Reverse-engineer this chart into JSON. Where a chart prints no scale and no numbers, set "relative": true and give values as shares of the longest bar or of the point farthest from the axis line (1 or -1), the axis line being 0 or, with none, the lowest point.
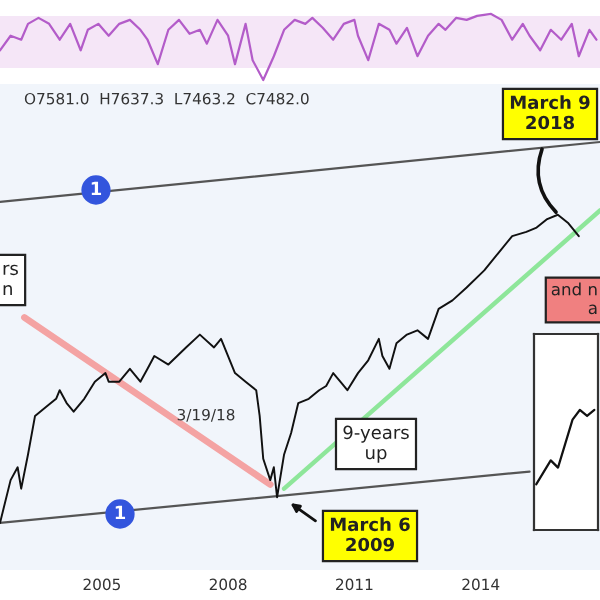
{
  "chart_data": [
    {
      "type": "line",
      "relative": true,
      "tick_labels": false,
      "grid": false,
      "legend": false,
      "bands": [
        {
          "axis": "y",
          "from": 0.18,
          "to": 0.97,
          "color": "#f5e6f7"
        }
      ],
      "series": [
        {
          "color": "#b35cc9",
          "x": [
            "2002-08",
            "2002-11",
            "2003-02",
            "2003-04",
            "2003-07",
            "2003-10",
            "2004-01",
            "2004-04",
            "2004-07",
            "2004-09",
            "2004-12",
            "2005-03",
            "2005-06",
            "2005-09",
            "2005-12",
            "2006-02",
            "2006-05",
            "2006-08",
            "2006-11",
            "2007-02",
            "2007-05",
            "2007-07",
            "2007-10",
            "2008-01",
            "2008-03",
            "2008-06",
            "2008-08",
            "2008-11",
            "2009-02",
            "2009-05",
            "2009-08",
            "2009-11",
            "2010-01",
            "2010-04",
            "2010-07",
            "2010-10",
            "2011-01",
            "2011-02",
            "2011-05",
            "2011-08",
            "2011-11",
            "2012-01",
            "2012-04",
            "2012-07",
            "2012-10",
            "2013-01",
            "2013-03",
            "2013-06",
            "2013-09",
            "2013-12",
            "2014-04",
            "2014-07",
            "2014-10",
            "2015-01",
            "2015-03",
            "2015-06",
            "2015-09",
            "2015-12",
            "2016-03",
            "2016-05",
            "2016-08",
            "2016-10"
          ],
          "values": [
            0.45,
            0.67,
            0.61,
            0.85,
            0.94,
            0.85,
            0.61,
            0.85,
            0.45,
            0.76,
            0.85,
            0.67,
            0.85,
            0.91,
            0.76,
            0.61,
            0.24,
            0.76,
            0.91,
            0.7,
            0.76,
            0.55,
            0.91,
            0.67,
            0.24,
            0.85,
            0.3,
            0,
            0.36,
            0.76,
            0.91,
            0.85,
            0.94,
            0.79,
            0.61,
            0.85,
            0.91,
            0.67,
            0.3,
            0.85,
            0.76,
            0.55,
            0.79,
            0.36,
            0.67,
            0.85,
            0.76,
            0.94,
            0.91,
            0.97,
            1,
            0.91,
            0.61,
            0.85,
            0.67,
            0.45,
            0.76,
            0.61,
            0.85,
            0.36,
            0.76,
            0.61
          ]
        }
      ],
      "xlim": [
        "2002-08",
        "2016-11"
      ]
    },
    {
      "type": "line",
      "relative": true,
      "tick_labels": "x",
      "grid": false,
      "legend": false,
      "xlim": [
        "2002-08",
        "2016-11"
      ],
      "xticks": [
        {
          "value": "2005-01",
          "label": "2005"
        },
        {
          "value": "2008-01",
          "label": "2008"
        },
        {
          "value": "2011-01",
          "label": "2011"
        },
        {
          "value": "2014-01",
          "label": "2014"
        }
      ],
      "series": [
        {
          "color": "#555555",
          "x": [
            "2002-08",
            "2016-11"
          ],
          "values": [
            0.86,
            1.0
          ]
        },
        {
          "color": "#555555",
          "x": [
            "2002-08",
            "2015-03"
          ],
          "values": [
            0.11,
            0.23
          ]
        },
        {
          "color": "#8ee69a",
          "x": [
            "2009-05",
            "2016-11"
          ],
          "values": [
            0.19,
            0.84
          ]
        },
        {
          "color": "#f4a3a3",
          "x": [
            "2003-03",
            "2009-01"
          ],
          "values": [
            0.59,
            0.2
          ]
        },
        {
          "color": "#111111",
          "x": [
            "2002-08",
            "2002-11",
            "2003-01",
            "2003-02",
            "2003-04",
            "2003-06",
            "2003-09",
            "2003-12",
            "2004-01",
            "2004-03",
            "2004-05",
            "2004-08",
            "2004-11",
            "2005-02",
            "2005-03",
            "2005-06",
            "2005-09",
            "2005-12",
            "2006-02",
            "2006-04",
            "2006-08",
            "2007-01",
            "2007-05",
            "2007-09",
            "2007-11",
            "2008-03",
            "2008-06",
            "2008-09",
            "2008-10",
            "2008-11",
            "2009-01",
            "2009-02",
            "2009-03",
            "2009-05",
            "2009-07",
            "2009-09",
            "2009-12",
            "2010-03",
            "2010-05",
            "2010-07",
            "2010-09",
            "2010-11",
            "2011-02",
            "2011-05",
            "2011-08",
            "2011-09",
            "2011-11",
            "2012-01",
            "2012-04",
            "2012-07",
            "2012-10",
            "2013-01",
            "2013-05",
            "2013-09",
            "2014-02",
            "2014-06",
            "2014-10",
            "2015-02",
            "2015-05",
            "2015-08",
            "2015-11",
            "2016-02",
            "2016-05"
          ],
          "values": [
            0.11,
            0.21,
            0.24,
            0.19,
            0.27,
            0.36,
            0.38,
            0.4,
            0.42,
            0.39,
            0.37,
            0.4,
            0.44,
            0.46,
            0.44,
            0.44,
            0.47,
            0.44,
            0.47,
            0.5,
            0.48,
            0.52,
            0.55,
            0.52,
            0.54,
            0.46,
            0.44,
            0.42,
            0.36,
            0.26,
            0.21,
            0.24,
            0.17,
            0.27,
            0.32,
            0.39,
            0.4,
            0.42,
            0.43,
            0.46,
            0.44,
            0.42,
            0.46,
            0.49,
            0.54,
            0.5,
            0.47,
            0.53,
            0.55,
            0.56,
            0.54,
            0.61,
            0.63,
            0.66,
            0.7,
            0.74,
            0.78,
            0.79,
            0.8,
            0.82,
            0.83,
            0.81,
            0.78
          ]
        }
      ],
      "annotations": [
        "O7581.0  H7637.3  L7463.2  C7482.0",
        "March 9\n2018",
        "1",
        "1",
        "rs\nn",
        "3/19/18",
        "9-years\nup",
        "March 6\n2009",
        "and n\na"
      ]
    },
    {
      "type": "line",
      "relative": true,
      "tick_labels": false,
      "grid": false,
      "legend": false,
      "categories": [
        null,
        null,
        null,
        null,
        null,
        null,
        null,
        null,
        null
      ],
      "series": [
        {
          "color": "#111111",
          "values": [
            0.38,
            0.48,
            0.58,
            0.52,
            0.72,
            0.92,
            1,
            0.95,
            1
          ]
        }
      ]
    }
  ]
}
